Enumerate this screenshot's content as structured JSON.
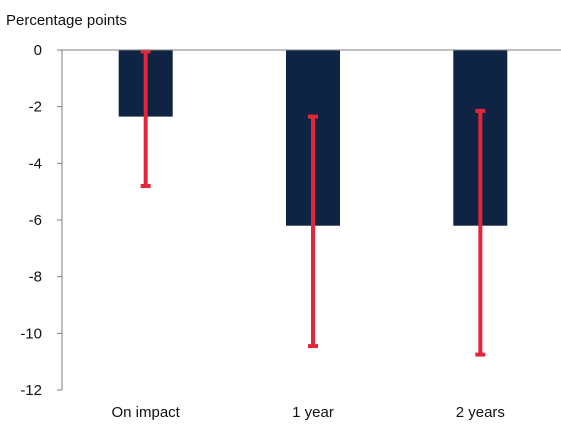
{
  "chart_data": {
    "type": "bar",
    "ylabel": "Percentage points",
    "categories": [
      "On impact",
      "1  year",
      "2  years"
    ],
    "values": [
      -2.35,
      -6.2,
      -6.2
    ],
    "error_bars": [
      {
        "upper": -0.05,
        "lower": -4.8
      },
      {
        "upper": -2.35,
        "lower": -10.45
      },
      {
        "upper": -2.15,
        "lower": -10.75
      }
    ],
    "ylim": [
      -12,
      0
    ],
    "yticks": [
      0,
      -2,
      -4,
      -6,
      -8,
      -10,
      -12
    ],
    "yticklabels": [
      "0",
      "-2",
      "-4",
      "-6",
      "-8",
      "-10",
      "-12"
    ],
    "grid": false,
    "colors": {
      "bar": "#0f2443",
      "error_bar": "#e4263a",
      "axis": "#7f7f7f"
    }
  }
}
